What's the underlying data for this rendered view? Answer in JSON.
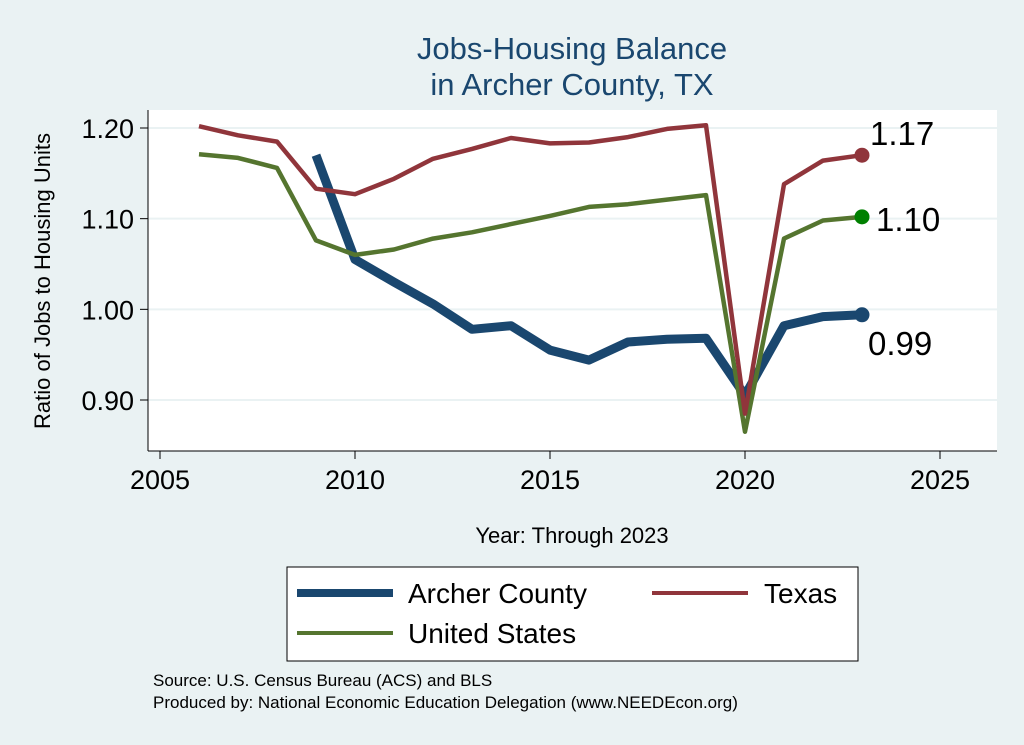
{
  "chart_data": {
    "type": "line",
    "title_line1": "Jobs-Housing Balance",
    "title_line2": "in Archer County, TX",
    "xlabel": "Year: Through 2023",
    "ylabel": "Ratio of Jobs to Housing Units",
    "xlim": [
      2005,
      2025
    ],
    "ylim": [
      0.86,
      1.22
    ],
    "xticks": [
      2005,
      2010,
      2015,
      2020,
      2025
    ],
    "yticks": [
      0.9,
      1.0,
      1.1,
      1.2
    ],
    "ytick_labels": [
      "0.90",
      "1.00",
      "1.10",
      "1.20"
    ],
    "xtick_labels": [
      "2005",
      "2010",
      "2015",
      "2020",
      "2025"
    ],
    "series": [
      {
        "name": "Archer County",
        "color": "#1a476f",
        "x": [
          2009,
          2010,
          2011,
          2012,
          2013,
          2014,
          2015,
          2016,
          2017,
          2018,
          2019,
          2020,
          2021,
          2022,
          2023
        ],
        "values": [
          1.17,
          1.055,
          1.03,
          1.006,
          0.978,
          0.982,
          0.955,
          0.944,
          0.964,
          0.967,
          0.968,
          0.905,
          0.982,
          0.992,
          0.994
        ],
        "end_label": "0.99"
      },
      {
        "name": "Texas",
        "color": "#90353b",
        "x": [
          2006,
          2007,
          2008,
          2009,
          2010,
          2011,
          2012,
          2013,
          2014,
          2015,
          2016,
          2017,
          2018,
          2019,
          2020,
          2021,
          2022,
          2023
        ],
        "values": [
          1.202,
          1.192,
          1.185,
          1.133,
          1.127,
          1.144,
          1.166,
          1.177,
          1.189,
          1.183,
          1.184,
          1.19,
          1.199,
          1.203,
          0.885,
          1.138,
          1.164,
          1.17
        ],
        "end_label": "1.17"
      },
      {
        "name": "United States",
        "color": "#55752f",
        "x": [
          2006,
          2007,
          2008,
          2009,
          2010,
          2011,
          2012,
          2013,
          2014,
          2015,
          2016,
          2017,
          2018,
          2019,
          2020,
          2021,
          2022,
          2023
        ],
        "values": [
          1.171,
          1.167,
          1.156,
          1.076,
          1.06,
          1.066,
          1.078,
          1.085,
          1.094,
          1.103,
          1.113,
          1.116,
          1.121,
          1.126,
          0.865,
          1.078,
          1.098,
          1.102
        ],
        "end_label": "1.10"
      }
    ],
    "end_markers": {
      "Archer County": "#1a476f",
      "Texas": "#90353b",
      "United States": "#008000"
    },
    "legend": [
      "Archer County",
      "Texas",
      "United States"
    ],
    "source_line1": "Source: U.S. Census Bureau (ACS) and BLS",
    "source_line2": "Produced by: National Economic Education Delegation (www.NEEDEcon.org)"
  },
  "colors": {
    "background": "#eaf2f3",
    "plot_background": "#ffffff",
    "title": "#1a476f"
  }
}
